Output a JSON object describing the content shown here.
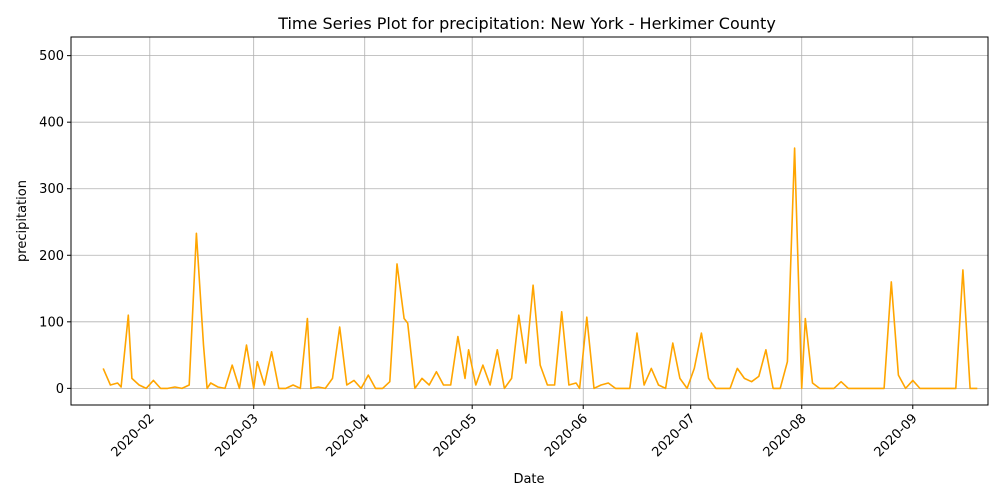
{
  "chart_data": {
    "type": "line",
    "title": "Time Series Plot for precipitation: New York - Herkimer County",
    "xlabel": "Date",
    "ylabel": "precipitation",
    "grid": true,
    "ylim": [
      -25,
      528
    ],
    "xlim": [
      "2020-01-10",
      "2020-09-22"
    ],
    "line_color": "#ffa500",
    "x_ticks": [
      {
        "date": "2020-02-01",
        "label": "2020-02"
      },
      {
        "date": "2020-03-01",
        "label": "2020-03"
      },
      {
        "date": "2020-04-01",
        "label": "2020-04"
      },
      {
        "date": "2020-05-01",
        "label": "2020-05"
      },
      {
        "date": "2020-06-01",
        "label": "2020-06"
      },
      {
        "date": "2020-07-01",
        "label": "2020-07"
      },
      {
        "date": "2020-08-01",
        "label": "2020-08"
      },
      {
        "date": "2020-09-01",
        "label": "2020-09"
      }
    ],
    "y_ticks": [
      0,
      100,
      200,
      300,
      400,
      500
    ],
    "series": [
      {
        "points": [
          [
            "2020-01-19",
            30
          ],
          [
            "2020-01-21",
            5
          ],
          [
            "2020-01-23",
            8
          ],
          [
            "2020-01-24",
            2
          ],
          [
            "2020-01-26",
            110
          ],
          [
            "2020-01-27",
            15
          ],
          [
            "2020-01-29",
            5
          ],
          [
            "2020-01-31",
            0
          ],
          [
            "2020-02-02",
            12
          ],
          [
            "2020-02-04",
            0
          ],
          [
            "2020-02-06",
            0
          ],
          [
            "2020-02-08",
            2
          ],
          [
            "2020-02-10",
            0
          ],
          [
            "2020-02-12",
            5
          ],
          [
            "2020-02-14",
            233
          ],
          [
            "2020-02-16",
            65
          ],
          [
            "2020-02-17",
            0
          ],
          [
            "2020-02-18",
            8
          ],
          [
            "2020-02-20",
            2
          ],
          [
            "2020-02-22",
            0
          ],
          [
            "2020-02-24",
            35
          ],
          [
            "2020-02-26",
            0
          ],
          [
            "2020-02-28",
            65
          ],
          [
            "2020-03-01",
            0
          ],
          [
            "2020-03-02",
            40
          ],
          [
            "2020-03-04",
            5
          ],
          [
            "2020-03-06",
            55
          ],
          [
            "2020-03-08",
            0
          ],
          [
            "2020-03-10",
            0
          ],
          [
            "2020-03-12",
            5
          ],
          [
            "2020-03-14",
            0
          ],
          [
            "2020-03-16",
            105
          ],
          [
            "2020-03-17",
            0
          ],
          [
            "2020-03-19",
            2
          ],
          [
            "2020-03-21",
            0
          ],
          [
            "2020-03-23",
            15
          ],
          [
            "2020-03-25",
            92
          ],
          [
            "2020-03-27",
            5
          ],
          [
            "2020-03-29",
            12
          ],
          [
            "2020-03-31",
            0
          ],
          [
            "2020-04-02",
            20
          ],
          [
            "2020-04-04",
            0
          ],
          [
            "2020-04-06",
            0
          ],
          [
            "2020-04-08",
            10
          ],
          [
            "2020-04-10",
            187
          ],
          [
            "2020-04-12",
            105
          ],
          [
            "2020-04-13",
            98
          ],
          [
            "2020-04-15",
            0
          ],
          [
            "2020-04-17",
            15
          ],
          [
            "2020-04-19",
            5
          ],
          [
            "2020-04-21",
            25
          ],
          [
            "2020-04-23",
            5
          ],
          [
            "2020-04-25",
            5
          ],
          [
            "2020-04-27",
            78
          ],
          [
            "2020-04-29",
            15
          ],
          [
            "2020-04-30",
            58
          ],
          [
            "2020-05-02",
            5
          ],
          [
            "2020-05-04",
            35
          ],
          [
            "2020-05-06",
            5
          ],
          [
            "2020-05-08",
            58
          ],
          [
            "2020-05-10",
            0
          ],
          [
            "2020-05-12",
            15
          ],
          [
            "2020-05-14",
            110
          ],
          [
            "2020-05-16",
            38
          ],
          [
            "2020-05-18",
            155
          ],
          [
            "2020-05-20",
            35
          ],
          [
            "2020-05-22",
            5
          ],
          [
            "2020-05-24",
            5
          ],
          [
            "2020-05-26",
            115
          ],
          [
            "2020-05-28",
            5
          ],
          [
            "2020-05-30",
            8
          ],
          [
            "2020-05-31",
            0
          ],
          [
            "2020-06-02",
            107
          ],
          [
            "2020-06-04",
            0
          ],
          [
            "2020-06-06",
            5
          ],
          [
            "2020-06-08",
            8
          ],
          [
            "2020-06-10",
            0
          ],
          [
            "2020-06-12",
            0
          ],
          [
            "2020-06-14",
            0
          ],
          [
            "2020-06-16",
            83
          ],
          [
            "2020-06-18",
            5
          ],
          [
            "2020-06-20",
            30
          ],
          [
            "2020-06-22",
            5
          ],
          [
            "2020-06-24",
            0
          ],
          [
            "2020-06-26",
            68
          ],
          [
            "2020-06-28",
            15
          ],
          [
            "2020-06-30",
            0
          ],
          [
            "2020-07-02",
            30
          ],
          [
            "2020-07-04",
            83
          ],
          [
            "2020-07-06",
            15
          ],
          [
            "2020-07-08",
            0
          ],
          [
            "2020-07-10",
            0
          ],
          [
            "2020-07-12",
            0
          ],
          [
            "2020-07-14",
            30
          ],
          [
            "2020-07-16",
            15
          ],
          [
            "2020-07-18",
            10
          ],
          [
            "2020-07-20",
            18
          ],
          [
            "2020-07-22",
            58
          ],
          [
            "2020-07-24",
            0
          ],
          [
            "2020-07-26",
            0
          ],
          [
            "2020-07-28",
            40
          ],
          [
            "2020-07-30",
            361
          ],
          [
            "2020-08-01",
            0
          ],
          [
            "2020-08-02",
            105
          ],
          [
            "2020-08-04",
            8
          ],
          [
            "2020-08-06",
            0
          ],
          [
            "2020-08-08",
            0
          ],
          [
            "2020-08-10",
            0
          ],
          [
            "2020-08-12",
            10
          ],
          [
            "2020-08-14",
            0
          ],
          [
            "2020-08-16",
            0
          ],
          [
            "2020-08-18",
            0
          ],
          [
            "2020-08-20",
            0
          ],
          [
            "2020-08-22",
            0
          ],
          [
            "2020-08-24",
            0
          ],
          [
            "2020-08-26",
            160
          ],
          [
            "2020-08-28",
            20
          ],
          [
            "2020-08-30",
            0
          ],
          [
            "2020-09-01",
            12
          ],
          [
            "2020-09-03",
            0
          ],
          [
            "2020-09-05",
            0
          ],
          [
            "2020-09-07",
            0
          ],
          [
            "2020-09-09",
            0
          ],
          [
            "2020-09-11",
            0
          ],
          [
            "2020-09-13",
            0
          ],
          [
            "2020-09-15",
            178
          ],
          [
            "2020-09-17",
            0
          ],
          [
            "2020-09-19",
            0
          ]
        ]
      }
    ]
  }
}
